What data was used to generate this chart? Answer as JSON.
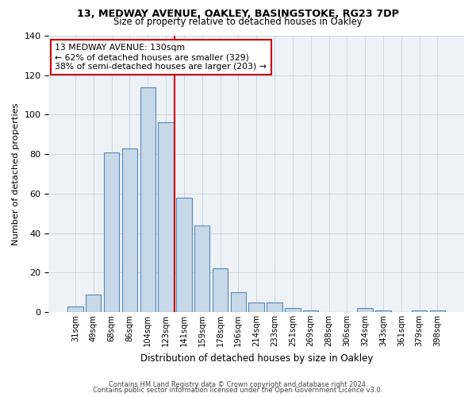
{
  "title1": "13, MEDWAY AVENUE, OAKLEY, BASINGSTOKE, RG23 7DP",
  "title2": "Size of property relative to detached houses in Oakley",
  "xlabel": "Distribution of detached houses by size in Oakley",
  "ylabel": "Number of detached properties",
  "bar_labels": [
    "31sqm",
    "49sqm",
    "68sqm",
    "86sqm",
    "104sqm",
    "123sqm",
    "141sqm",
    "159sqm",
    "178sqm",
    "196sqm",
    "214sqm",
    "233sqm",
    "251sqm",
    "269sqm",
    "288sqm",
    "306sqm",
    "324sqm",
    "343sqm",
    "361sqm",
    "379sqm",
    "398sqm"
  ],
  "bar_heights": [
    3,
    9,
    81,
    83,
    114,
    96,
    58,
    44,
    22,
    10,
    5,
    5,
    2,
    1,
    0,
    0,
    2,
    1,
    0,
    1,
    1
  ],
  "bar_color": "#c8d8e8",
  "bar_edge_color": "#5588bb",
  "property_line_label": "13 MEDWAY AVENUE: 130sqm",
  "annotation_line2": "← 62% of detached houses are smaller (329)",
  "annotation_line3": "38% of semi-detached houses are larger (203) →",
  "vline_color": "#cc0000",
  "annotation_box_edge": "#cc0000",
  "ylim": [
    0,
    140
  ],
  "yticks": [
    0,
    20,
    40,
    60,
    80,
    100,
    120,
    140
  ],
  "footer1": "Contains HM Land Registry data © Crown copyright and database right 2024.",
  "footer2": "Contains public sector information licensed under the Open Government Licence v3.0.",
  "bg_color": "#eef2f7",
  "grid_color": "#c0ccd8"
}
